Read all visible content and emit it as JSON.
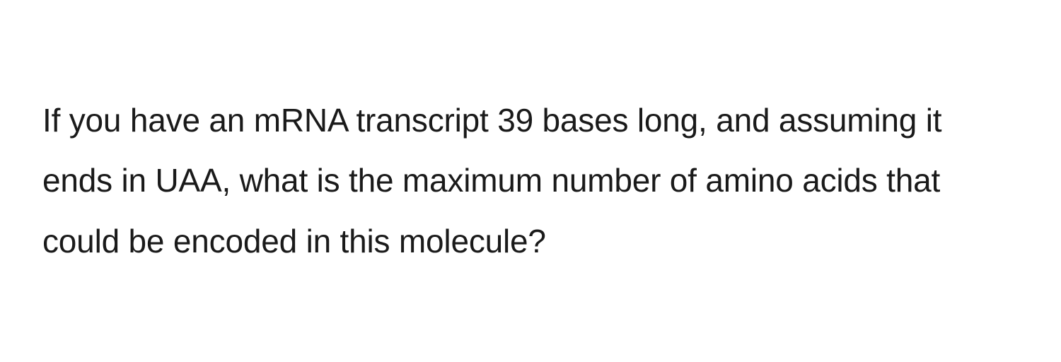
{
  "question": {
    "text": "If you have an mRNA transcript 39 bases long, and assuming it ends in UAA, what is the maximum number of amino acids that could be encoded in this molecule?",
    "font_size": 46,
    "line_height": 1.85,
    "text_color": "#1a1a1a",
    "background_color": "#ffffff"
  }
}
